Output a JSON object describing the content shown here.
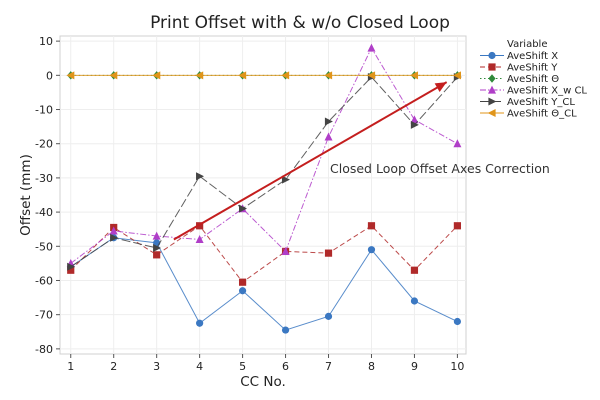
{
  "chart_data": {
    "type": "line",
    "title": "Print Offset with & w/o Closed Loop",
    "xlabel": "CC No.",
    "ylabel": "Offset (mm)",
    "x": [
      1,
      2,
      3,
      4,
      5,
      6,
      7,
      8,
      9,
      10
    ],
    "xlim": [
      0.75,
      10.2
    ],
    "ylim": [
      -81.5,
      11.5
    ],
    "yticks": [
      10,
      0,
      -10,
      -20,
      -30,
      -40,
      -50,
      -60,
      -70,
      -80
    ],
    "grid": true,
    "legend_title": "Variable",
    "legend_position": "right",
    "series": [
      {
        "name": "AveShift X",
        "color": "#3b78c2",
        "marker": "circle",
        "dash": "solid",
        "values": [
          -56,
          -47.5,
          -49,
          -72.5,
          -63,
          -74.5,
          -70.5,
          -51,
          -66,
          -72
        ]
      },
      {
        "name": "AveShift Y",
        "color": "#b02a2a",
        "marker": "square",
        "dash": "dashed",
        "values": [
          -57,
          -44.5,
          -52.5,
          -44,
          -60.5,
          -51.5,
          -52,
          -44,
          -57,
          -44
        ]
      },
      {
        "name": "AveShift Θ",
        "color": "#2f8a3a",
        "marker": "diamond",
        "dash": "dotted",
        "values": [
          0,
          0,
          0,
          0,
          0,
          0,
          0,
          0,
          0,
          0
        ]
      },
      {
        "name": "AveShift X_w CL",
        "color": "#b03ec8",
        "marker": "triangle-up",
        "dash": "dashdot",
        "values": [
          -55,
          -45.5,
          -47,
          -48,
          -39,
          -51.5,
          -18,
          8,
          -13,
          -20
        ]
      },
      {
        "name": "AveShift Y_CL",
        "color": "#444444",
        "marker": "triangle-right",
        "dash": "longdash",
        "values": [
          -56,
          -47.5,
          -50.5,
          -29.5,
          -39,
          -30.5,
          -13.5,
          -0.5,
          -14.5,
          -0.5
        ]
      },
      {
        "name": "AveShift Θ_CL",
        "color": "#e0951a",
        "marker": "triangle-left",
        "dash": "solid",
        "values": [
          0,
          0,
          0,
          0,
          0,
          0,
          0,
          0,
          0,
          0
        ]
      }
    ],
    "annotations": [
      {
        "text": "Closed Loop Offset Axes Correction",
        "arrow_from": [
          3.4,
          -48
        ],
        "arrow_to": [
          9.75,
          -2
        ],
        "arrow_color": "#c41e1e"
      }
    ]
  }
}
